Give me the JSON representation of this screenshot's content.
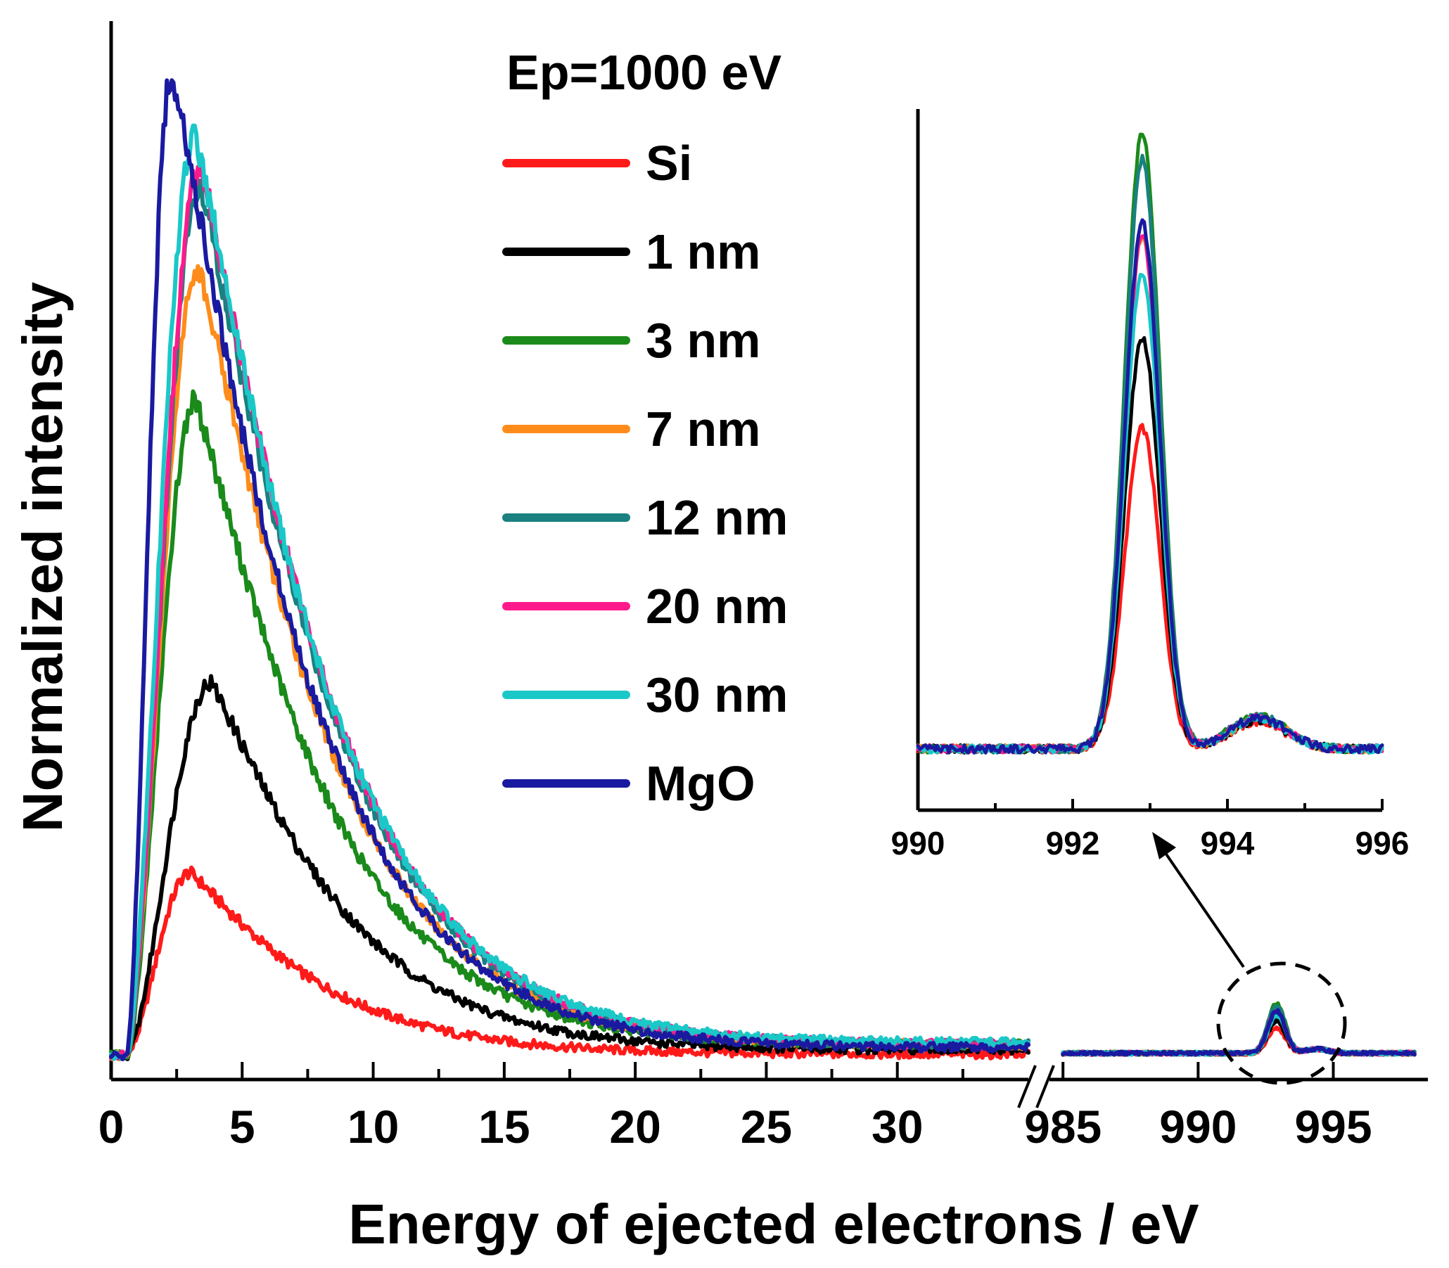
{
  "chart_data": {
    "type": "line",
    "title": "Ep=1000 eV",
    "xlabel": "Energy of ejected electrons / eV",
    "ylabel": "Normalized intensity",
    "x_axis": {
      "broken": true,
      "segment_low": {
        "range": [
          0,
          35
        ],
        "ticks": [
          0,
          5,
          10,
          15,
          20,
          25,
          30
        ]
      },
      "segment_high": {
        "range": [
          984.5,
          998.5
        ],
        "ticks": [
          985,
          990,
          995
        ]
      }
    },
    "ylim": [
      0,
      1.0
    ],
    "legend": {
      "title": "Ep=1000 eV",
      "placement": "top-center"
    },
    "series": [
      {
        "name": "Si",
        "color": "#ff1a1a",
        "peak_x": 3.0,
        "peak_y": 0.19,
        "tail_y": 0.013,
        "elastic_peak": 0.025
      },
      {
        "name": "1 nm",
        "color": "#000000",
        "peak_x": 3.8,
        "peak_y": 0.375,
        "tail_y": 0.017,
        "elastic_peak": 0.032
      },
      {
        "name": "3 nm",
        "color": "#1a8a1a",
        "peak_x": 3.2,
        "peak_y": 0.65,
        "tail_y": 0.022,
        "elastic_peak": 0.048
      },
      {
        "name": "7 nm",
        "color": "#ff8c1a",
        "peak_x": 3.3,
        "peak_y": 0.78,
        "tail_y": 0.022,
        "elastic_peak": 0.04
      },
      {
        "name": "12 nm",
        "color": "#1a8080",
        "peak_x": 3.4,
        "peak_y": 0.86,
        "tail_y": 0.022,
        "elastic_peak": 0.046
      },
      {
        "name": "20 nm",
        "color": "#ff1a8c",
        "peak_x": 3.4,
        "peak_y": 0.88,
        "tail_y": 0.022,
        "elastic_peak": 0.04
      },
      {
        "name": "30 nm",
        "color": "#1ac8c8",
        "peak_x": 3.2,
        "peak_y": 0.91,
        "tail_y": 0.024,
        "elastic_peak": 0.037
      },
      {
        "name": "MgO",
        "color": "#1a1aa0",
        "peak_x": 2.3,
        "peak_y": 0.97,
        "tail_y": 0.019,
        "elastic_peak": 0.041
      }
    ],
    "inset": {
      "xlim": [
        990,
        996
      ],
      "ticks": [
        990,
        992,
        994,
        996
      ],
      "peak_x": 992.9,
      "annotation": "arrow from dashed circle around elastic peak"
    }
  }
}
